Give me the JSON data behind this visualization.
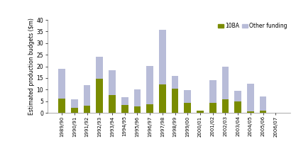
{
  "categories": [
    "1989/90",
    "1990/91",
    "1991/92",
    "1992/93",
    "1993/94",
    "1994/95",
    "1995/96",
    "1996/97",
    "1997/98",
    "1998/99",
    "1999/00",
    "2000/01",
    "2001/02",
    "2002/03",
    "2003/04",
    "2004/05",
    "2005/06",
    "2006/07"
  ],
  "ba10_values": [
    6.1,
    2.2,
    3.1,
    14.8,
    7.6,
    3.3,
    2.8,
    3.7,
    12.3,
    10.5,
    4.2,
    0.9,
    4.4,
    5.9,
    4.9,
    0.6,
    0.8,
    0.0
  ],
  "other_values": [
    13.0,
    3.7,
    8.8,
    9.5,
    10.8,
    3.4,
    7.4,
    16.4,
    23.3,
    5.4,
    5.6,
    0.0,
    9.7,
    13.9,
    4.5,
    11.8,
    6.2,
    0.0
  ],
  "ba10_color": "#7a8c00",
  "other_color": "#b8bcd8",
  "ylabel": "Estimated production budgets ($m)",
  "ylim": [
    0,
    40
  ],
  "yticks": [
    0,
    5,
    10,
    15,
    20,
    25,
    30,
    35,
    40
  ],
  "legend_10ba": "10BA",
  "legend_other": "Other funding",
  "bar_width": 0.55
}
